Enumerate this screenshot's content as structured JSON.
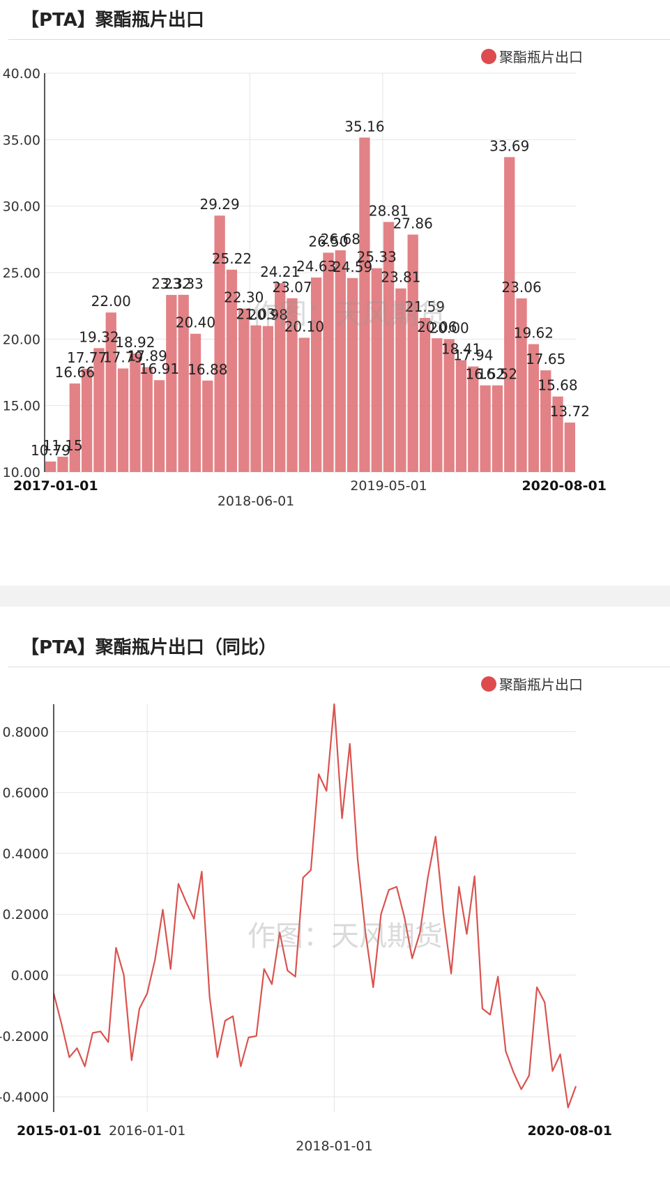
{
  "watermark": "作图：天风期货",
  "chart_data": [
    {
      "type": "bar",
      "title": "【PTA】聚酯瓶片出口",
      "legend": [
        "聚酯瓶片出口"
      ],
      "legend_position": "top-right",
      "color": "#e07b7f",
      "series": [
        {
          "name": "聚酯瓶片出口",
          "values": [
            10.79,
            11.15,
            16.66,
            17.77,
            19.32,
            22.0,
            17.79,
            18.92,
            17.89,
            16.91,
            23.32,
            23.33,
            20.4,
            16.88,
            29.29,
            25.22,
            22.3,
            21.03,
            20.98,
            24.21,
            23.07,
            20.1,
            24.63,
            26.5,
            26.68,
            24.59,
            35.16,
            25.33,
            28.81,
            23.81,
            27.86,
            21.59,
            20.06,
            20.0,
            18.41,
            17.94,
            16.52,
            16.52,
            33.69,
            23.06,
            19.62,
            17.65,
            15.68,
            13.72
          ]
        }
      ],
      "labels": [
        "10.79",
        "11.15",
        "16.66",
        "17.77",
        "19.32",
        "22.00",
        "17.79",
        "18.92",
        "17.89",
        "16.91",
        "23.32",
        "23.33",
        "20.40",
        "16.88",
        "29.29",
        "25.22",
        "22.30",
        "21.03",
        "20.98",
        "24.21",
        "23.07",
        "20.10",
        "24.63",
        "26.50",
        "26.68",
        "24.59",
        "35.16",
        "25.33",
        "28.81",
        "23.81",
        "27.86",
        "21.59",
        "20.06",
        "20.00",
        "18.41",
        "17.94",
        "16.52",
        "16.52",
        "33.69",
        "23.06",
        "19.62",
        "17.65",
        "15.68",
        "13.72"
      ],
      "x_start": "2017-01-01",
      "x_end": "2020-08-01",
      "xticks": [
        {
          "label": "2017-01-01",
          "bold": true,
          "row": 1
        },
        {
          "label": "2018-06-01",
          "bold": false,
          "row": 2
        },
        {
          "label": "2019-05-01",
          "bold": false,
          "row": 1
        },
        {
          "label": "2020-08-01",
          "bold": true,
          "row": 1
        }
      ],
      "ylim": [
        10,
        40
      ],
      "yticks": [
        "10.00",
        "15.00",
        "20.00",
        "25.00",
        "30.00",
        "35.00",
        "40.00"
      ],
      "grid": true
    },
    {
      "type": "line",
      "title": "【PTA】聚酯瓶片出口（同比）",
      "legend": [
        "聚酯瓶片出口"
      ],
      "legend_position": "top-right",
      "color": "#d9534f",
      "series": [
        {
          "name": "聚酯瓶片出口",
          "values": [
            -0.06,
            -0.16,
            -0.27,
            -0.24,
            -0.3,
            -0.19,
            -0.185,
            -0.22,
            0.09,
            0.0,
            -0.28,
            -0.11,
            -0.06,
            0.05,
            0.215,
            0.02,
            0.3,
            0.24,
            0.185,
            0.34,
            -0.07,
            -0.27,
            -0.15,
            -0.135,
            -0.3,
            -0.205,
            -0.2,
            0.02,
            -0.03,
            0.14,
            0.015,
            -0.005,
            0.32,
            0.345,
            0.66,
            0.605,
            0.89,
            0.515,
            0.76,
            0.38,
            0.14,
            -0.04,
            0.2,
            0.28,
            0.29,
            0.19,
            0.055,
            0.14,
            0.32,
            0.455,
            0.2,
            0.005,
            0.29,
            0.135,
            0.325,
            -0.11,
            -0.13,
            -0.005,
            -0.25,
            -0.32,
            -0.375,
            -0.33,
            -0.04,
            -0.09,
            -0.315,
            -0.26,
            -0.435,
            -0.365
          ]
        }
      ],
      "x_start": "2015-01-01",
      "x_end": "2020-08-01",
      "xticks": [
        {
          "label": "2015-01-01",
          "bold": true,
          "row": 1
        },
        {
          "label": "2016-01-01",
          "bold": false,
          "row": 1
        },
        {
          "label": "2018-01-01",
          "bold": false,
          "row": 2
        },
        {
          "label": "2020-08-01",
          "bold": true,
          "row": 1
        }
      ],
      "ylim": [
        -0.45,
        0.89
      ],
      "yticks": [
        "-0.4000",
        "-0.2000",
        "0.000",
        "0.2000",
        "0.4000",
        "0.6000",
        "0.8000"
      ],
      "grid": true
    }
  ]
}
